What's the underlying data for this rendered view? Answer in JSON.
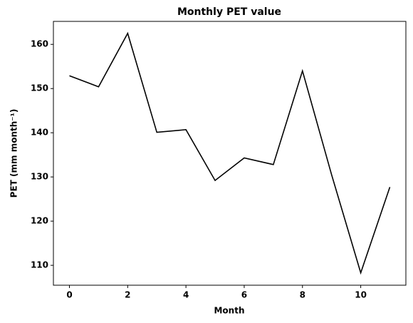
{
  "chart_data": {
    "type": "line",
    "title": "Monthly PET value",
    "xlabel": "Month",
    "ylabel": "PET (mm month⁻¹)",
    "x": [
      0,
      1,
      2,
      3,
      4,
      5,
      6,
      7,
      8,
      9,
      10,
      11
    ],
    "series": [
      {
        "name": "PET",
        "color": "#000000",
        "values": [
          152.9,
          150.4,
          162.5,
          140.1,
          140.7,
          129.2,
          134.3,
          132.8,
          154.0,
          130.5,
          108.3,
          127.7
        ]
      }
    ],
    "xlim": [
      -0.55,
      11.55
    ],
    "ylim": [
      105.5,
      165.2
    ],
    "xticks": [
      0,
      2,
      4,
      6,
      8,
      10
    ],
    "yticks": [
      110,
      120,
      130,
      140,
      150,
      160
    ]
  }
}
